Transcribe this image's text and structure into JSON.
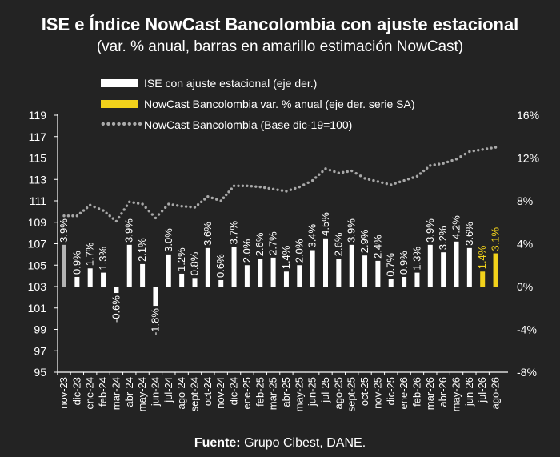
{
  "title": "ISE e Índice NowCast Bancolombia con ajuste estacional",
  "subtitle": "(var. % anual, barras en amarillo estimación NowCast)",
  "legend": {
    "ise": "ISE con ajuste estacional  (eje der.)",
    "nowcast_bars": "NowCast Bancolombia var. % anual (eje der. serie SA)",
    "nowcast_index": "NowCast Bancolombia (Base dic-19=100)"
  },
  "source": {
    "label": "Fuente:",
    "text": " Grupo Cibest, DANE."
  },
  "colors": {
    "background": "#232323",
    "ise_bar": "#ffffff",
    "first_bar": "#b3b3b3",
    "nowcast_bar": "#f2d21b",
    "index_dots": "#a8a8a8",
    "axis": "#ffffff"
  },
  "chart_data": {
    "type": "bar",
    "categories": [
      "nov-23",
      "dic-23",
      "ene-24",
      "feb-24",
      "mar-24",
      "abr-24",
      "may-24",
      "jun-24",
      "jul-24",
      "ago-24",
      "sept-24",
      "oct-24",
      "nov-24",
      "dic-24",
      "ene-25",
      "feb-25",
      "mar-25",
      "abr-25",
      "may-25",
      "jun-25",
      "jul-25",
      "ago-25",
      "sept-25",
      "oct-25",
      "nov-25",
      "dic-25",
      "ene-26",
      "feb-26",
      "mar-26",
      "abr-26",
      "may-26",
      "jun-26",
      "jul-26",
      "ago-26"
    ],
    "series": [
      {
        "name": "ISE con ajuste estacional  (eje der.)",
        "axis": "right",
        "values": [
          3.9,
          0.9,
          1.7,
          1.3,
          -0.6,
          3.9,
          2.1,
          -1.8,
          3.0,
          1.2,
          0.8,
          3.6,
          0.6,
          3.7,
          2.0,
          2.6,
          2.7,
          1.4,
          2.0,
          3.4,
          4.5,
          2.6,
          3.9,
          2.9,
          2.4,
          0.7,
          0.9,
          1.3,
          3.9,
          3.2,
          4.2,
          3.6,
          null,
          null
        ],
        "labels": [
          "3.9%",
          "0.9%",
          "1.7%",
          "1.3%",
          "-0.6%",
          "3.9%",
          "2.1%",
          "-1.8%",
          "3.0%",
          "1.2%",
          "0.8%",
          "3.6%",
          "0.6%",
          "3.7%",
          "2.0%",
          "2.6%",
          "2.7%",
          "1.4%",
          "2.0%",
          "3.4%",
          "4.5%",
          "2.6%",
          "3.9%",
          "2.9%",
          "2.4%",
          "0.7%",
          "0.9%",
          "1.3%",
          "3.9%",
          "3.2%",
          "4.2%",
          "3.6%",
          null,
          null
        ]
      },
      {
        "name": "NowCast Bancolombia var. % anual (eje der. serie SA)",
        "axis": "right",
        "values": [
          null,
          null,
          null,
          null,
          null,
          null,
          null,
          null,
          null,
          null,
          null,
          null,
          null,
          null,
          null,
          null,
          null,
          null,
          null,
          null,
          null,
          null,
          null,
          null,
          null,
          null,
          null,
          null,
          null,
          null,
          null,
          null,
          1.4,
          3.1
        ],
        "labels": [
          null,
          null,
          null,
          null,
          null,
          null,
          null,
          null,
          null,
          null,
          null,
          null,
          null,
          null,
          null,
          null,
          null,
          null,
          null,
          null,
          null,
          null,
          null,
          null,
          null,
          null,
          null,
          null,
          null,
          null,
          null,
          null,
          "1.4%",
          "3.1%"
        ]
      },
      {
        "name": "NowCast Bancolombia (Base dic-19=100)",
        "axis": "left",
        "type": "line-dotted",
        "values": [
          109.6,
          109.6,
          110.6,
          110.1,
          109.1,
          110.9,
          110.7,
          109.4,
          110.7,
          110.5,
          110.4,
          111.4,
          111.0,
          112.4,
          112.4,
          112.3,
          112.1,
          111.9,
          112.3,
          112.9,
          114.0,
          113.6,
          113.8,
          113.1,
          112.8,
          112.5,
          112.9,
          113.3,
          114.3,
          114.5,
          114.9,
          115.6,
          115.8,
          116.0
        ]
      }
    ],
    "y_left": {
      "min": 95,
      "max": 119,
      "ticks": [
        "119",
        "117",
        "115",
        "113",
        "111",
        "109",
        "107",
        "105",
        "103",
        "101",
        "99",
        "97",
        "95"
      ]
    },
    "y_right": {
      "min": -8,
      "max": 16,
      "ticks": [
        "16%",
        "12%",
        "8%",
        "4%",
        "0%",
        "-4%",
        "-8%"
      ]
    },
    "legend_position": "top-left",
    "grid": false
  }
}
